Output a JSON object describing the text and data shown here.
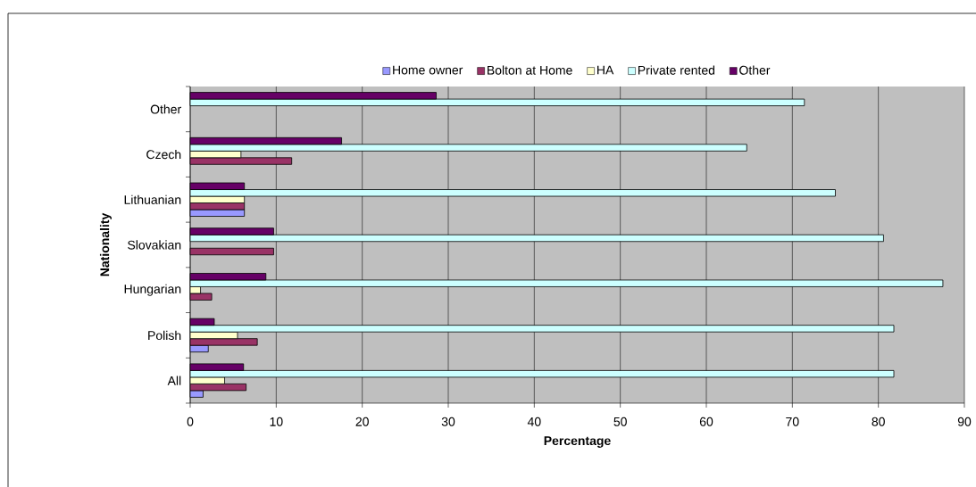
{
  "chart_data": {
    "type": "bar",
    "orientation": "horizontal",
    "xlabel": "Percentage",
    "ylabel": "Nationality",
    "categories": [
      "Other",
      "Czech",
      "Lithuanian",
      "Slovakian",
      "Hungarian",
      "Polish",
      "All"
    ],
    "series": [
      {
        "name": "Home owner",
        "color": "#9999ff",
        "values": [
          null,
          null,
          6.3,
          null,
          null,
          2.1,
          1.5
        ]
      },
      {
        "name": "Bolton at Home",
        "color": "#993366",
        "values": [
          null,
          11.8,
          6.3,
          9.7,
          2.5,
          7.8,
          6.5
        ]
      },
      {
        "name": "HA",
        "color": "#ffffcc",
        "values": [
          null,
          5.9,
          6.3,
          null,
          1.2,
          5.5,
          4.0
        ]
      },
      {
        "name": "Private rented",
        "color": "#ccffff",
        "values": [
          71.4,
          64.7,
          75,
          80.6,
          87.5,
          81.8,
          81.8
        ]
      },
      {
        "name": "Other",
        "color": "#660066",
        "values": [
          28.6,
          17.6,
          6.3,
          9.7,
          8.8,
          2.8,
          6.2
        ]
      }
    ],
    "xlim": [
      0,
      90
    ],
    "xticks": [
      0,
      10,
      20,
      30,
      40,
      50,
      60,
      70,
      80,
      90
    ],
    "grid": "x",
    "legend": "top"
  }
}
